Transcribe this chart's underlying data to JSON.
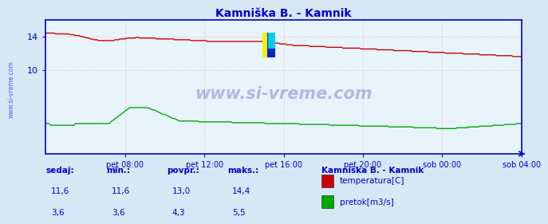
{
  "title": "Kamniška B. - Kamnik",
  "bg_color": "#d6e8f5",
  "plot_bg_color": "#e8f4fb",
  "grid_color": "#ff9999",
  "axis_color": "#0000cc",
  "title_color": "#0000cc",
  "tick_color": "#0000cc",
  "xlim": [
    0,
    288
  ],
  "ylim": [
    0,
    16
  ],
  "yticks": [
    10,
    14
  ],
  "xtick_labels": [
    "pet 08:00",
    "pet 12:00",
    "pet 16:00",
    "pet 20:00",
    "sob 00:00",
    "sob 04:00"
  ],
  "xtick_positions": [
    48,
    96,
    144,
    192,
    240,
    288
  ],
  "temp_color": "#cc0000",
  "flow_color": "#00aa00",
  "watermark_text": "www.si-vreme.com",
  "watermark_color": "#3333aa",
  "legend_title": "Kamniška B. - Kamnik",
  "legend_items": [
    "temperatura[C]",
    "pretok[m3/s]"
  ],
  "legend_colors": [
    "#cc0000",
    "#00aa00"
  ],
  "stats_labels": [
    "sedaj:",
    "min.:",
    "povpr.:",
    "maks.:"
  ],
  "stats_temp": [
    "11,6",
    "11,6",
    "13,0",
    "14,4"
  ],
  "stats_flow": [
    "3,6",
    "3,6",
    "4,3",
    "5,5"
  ],
  "footer_color": "#0000cc",
  "sidebar_text": "www.si-vreme.com",
  "sidebar_color": "#0000cc"
}
